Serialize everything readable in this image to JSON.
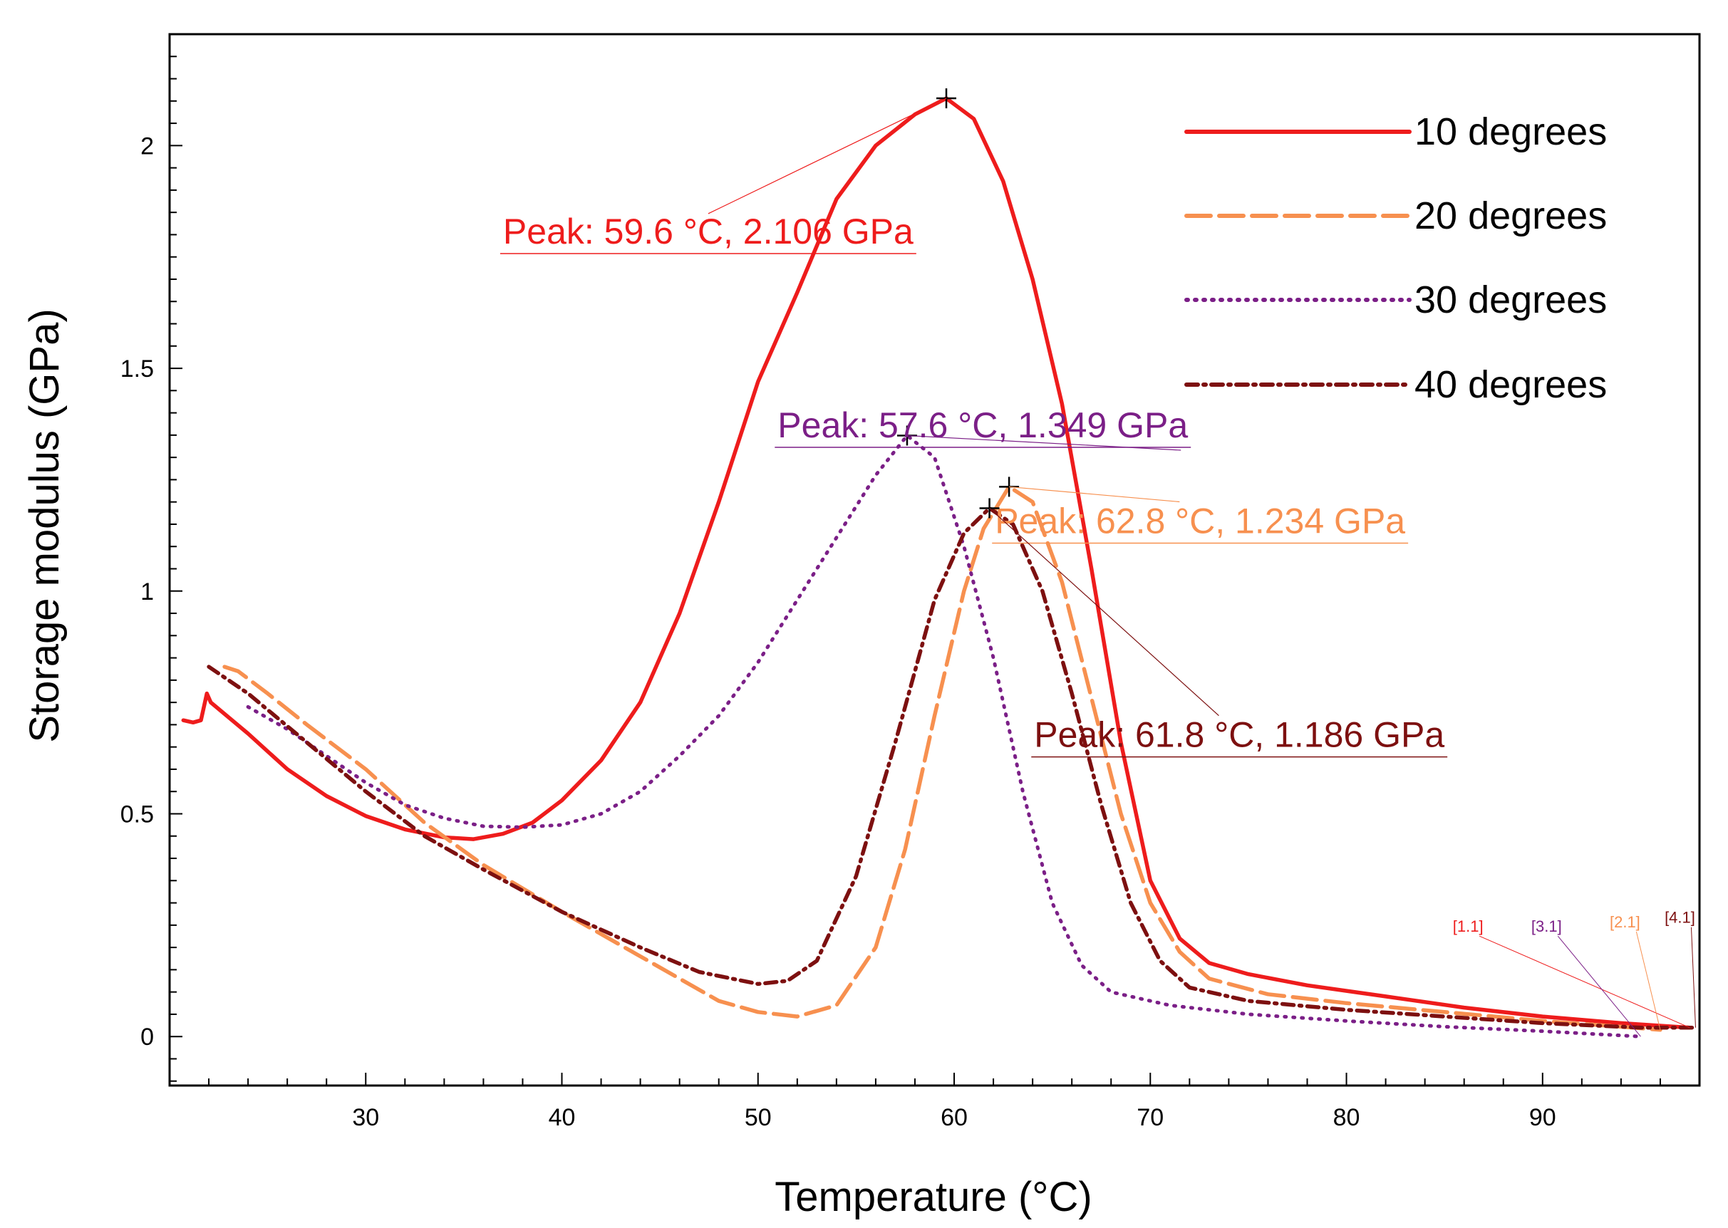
{
  "chart_data": {
    "type": "line",
    "xlabel": "Temperature (°C)",
    "ylabel": "Storage modulus (GPa)",
    "xlim": [
      20,
      98
    ],
    "ylim": [
      -0.11,
      2.25
    ],
    "x_ticks": [
      30,
      40,
      50,
      60,
      70,
      80,
      90
    ],
    "y_ticks": [
      0,
      0.5,
      1,
      1.5,
      2
    ],
    "y_tick_labels": [
      "0",
      "0.5",
      "1",
      "1.5",
      "2"
    ],
    "legend_position": "top-right",
    "legend": [
      "10  degrees",
      "20  degrees",
      "30  degrees",
      "40 degrees"
    ],
    "series": [
      {
        "name": "10  degrees",
        "color": "#ee1c1c",
        "dash": "solid",
        "end_label": "[1.1]",
        "points": [
          [
            20.7,
            0.71
          ],
          [
            21.2,
            0.705
          ],
          [
            21.6,
            0.71
          ],
          [
            21.9,
            0.77
          ],
          [
            22.1,
            0.75
          ],
          [
            24,
            0.68
          ],
          [
            26,
            0.6
          ],
          [
            28,
            0.54
          ],
          [
            30,
            0.495
          ],
          [
            32,
            0.465
          ],
          [
            34,
            0.447
          ],
          [
            35.5,
            0.443
          ],
          [
            37,
            0.455
          ],
          [
            38.5,
            0.48
          ],
          [
            40,
            0.53
          ],
          [
            42,
            0.62
          ],
          [
            44,
            0.75
          ],
          [
            46,
            0.95
          ],
          [
            48,
            1.2
          ],
          [
            50,
            1.47
          ],
          [
            52,
            1.67
          ],
          [
            54,
            1.88
          ],
          [
            56,
            2.0
          ],
          [
            58,
            2.07
          ],
          [
            59.6,
            2.106
          ],
          [
            61,
            2.06
          ],
          [
            62.5,
            1.92
          ],
          [
            64,
            1.7
          ],
          [
            65.5,
            1.42
          ],
          [
            67,
            1.05
          ],
          [
            68.5,
            0.66
          ],
          [
            70,
            0.35
          ],
          [
            71.5,
            0.22
          ],
          [
            73,
            0.165
          ],
          [
            75,
            0.14
          ],
          [
            78,
            0.115
          ],
          [
            82,
            0.09
          ],
          [
            86,
            0.065
          ],
          [
            90,
            0.045
          ],
          [
            94,
            0.03
          ],
          [
            97.5,
            0.02
          ]
        ]
      },
      {
        "name": "20  degrees",
        "color": "#f7904f",
        "dash": "long-dash",
        "end_label": "[2.1]",
        "points": [
          [
            22.8,
            0.83
          ],
          [
            23.5,
            0.82
          ],
          [
            25,
            0.77
          ],
          [
            27,
            0.7
          ],
          [
            30,
            0.6
          ],
          [
            33,
            0.48
          ],
          [
            36,
            0.385
          ],
          [
            40,
            0.28
          ],
          [
            44,
            0.18
          ],
          [
            48,
            0.08
          ],
          [
            50,
            0.055
          ],
          [
            52,
            0.045
          ],
          [
            54,
            0.07
          ],
          [
            56,
            0.2
          ],
          [
            57.5,
            0.42
          ],
          [
            59,
            0.72
          ],
          [
            60.5,
            1.0
          ],
          [
            61.5,
            1.14
          ],
          [
            62.8,
            1.234
          ],
          [
            64,
            1.2
          ],
          [
            65.5,
            1.02
          ],
          [
            67,
            0.76
          ],
          [
            68.5,
            0.5
          ],
          [
            70,
            0.3
          ],
          [
            71.5,
            0.19
          ],
          [
            73,
            0.13
          ],
          [
            76,
            0.095
          ],
          [
            80,
            0.075
          ],
          [
            85,
            0.055
          ],
          [
            90,
            0.035
          ],
          [
            94,
            0.022
          ],
          [
            96,
            0.015
          ]
        ]
      },
      {
        "name": "30  degrees",
        "color": "#7b1f87",
        "dash": "dot",
        "end_label": "[3.1]",
        "points": [
          [
            24,
            0.74
          ],
          [
            26,
            0.69
          ],
          [
            28,
            0.63
          ],
          [
            30,
            0.57
          ],
          [
            32,
            0.52
          ],
          [
            34,
            0.49
          ],
          [
            36,
            0.472
          ],
          [
            38,
            0.47
          ],
          [
            40,
            0.475
          ],
          [
            42,
            0.5
          ],
          [
            44,
            0.55
          ],
          [
            46,
            0.63
          ],
          [
            48,
            0.72
          ],
          [
            50,
            0.84
          ],
          [
            52,
            0.98
          ],
          [
            54,
            1.12
          ],
          [
            56,
            1.26
          ],
          [
            57.6,
            1.349
          ],
          [
            59,
            1.3
          ],
          [
            60.5,
            1.1
          ],
          [
            62,
            0.85
          ],
          [
            63.5,
            0.55
          ],
          [
            65,
            0.3
          ],
          [
            66.5,
            0.16
          ],
          [
            68,
            0.1
          ],
          [
            71,
            0.07
          ],
          [
            75,
            0.05
          ],
          [
            80,
            0.035
          ],
          [
            85,
            0.022
          ],
          [
            90,
            0.012
          ],
          [
            95,
            0.0
          ]
        ]
      },
      {
        "name": "40 degrees",
        "color": "#7d1010",
        "dash": "dash-dot",
        "end_label": "[4.1]",
        "points": [
          [
            22,
            0.83
          ],
          [
            24,
            0.77
          ],
          [
            27,
            0.66
          ],
          [
            30,
            0.55
          ],
          [
            33,
            0.45
          ],
          [
            36,
            0.375
          ],
          [
            40,
            0.28
          ],
          [
            44,
            0.2
          ],
          [
            47,
            0.145
          ],
          [
            50,
            0.118
          ],
          [
            51.5,
            0.125
          ],
          [
            53,
            0.17
          ],
          [
            55,
            0.36
          ],
          [
            57,
            0.66
          ],
          [
            59,
            0.98
          ],
          [
            60.5,
            1.13
          ],
          [
            61.8,
            1.186
          ],
          [
            63,
            1.15
          ],
          [
            64.5,
            1.0
          ],
          [
            66,
            0.77
          ],
          [
            67.5,
            0.52
          ],
          [
            69,
            0.3
          ],
          [
            70.5,
            0.17
          ],
          [
            72,
            0.11
          ],
          [
            75,
            0.08
          ],
          [
            80,
            0.06
          ],
          [
            85,
            0.045
          ],
          [
            90,
            0.03
          ],
          [
            95,
            0.02
          ],
          [
            97.8,
            0.02
          ]
        ]
      }
    ],
    "annotations": [
      {
        "name": "peak-10",
        "text": "Peak: 59.6 °C, 2.106 GPa",
        "x": 59.6,
        "y": 2.106,
        "color": "#ee1c1c",
        "anchor_x": 37,
        "anchor_y": 1.78
      },
      {
        "name": "peak-30",
        "text": "Peak: 57.6 °C, 1.349 GPa",
        "x": 57.6,
        "y": 1.349,
        "color": "#7b1f87",
        "anchor_x": 51,
        "anchor_y": 1.345
      },
      {
        "name": "peak-20",
        "text": "Peak: 62.8 °C, 1.234 GPa",
        "x": 62.8,
        "y": 1.234,
        "color": "#f7904f",
        "anchor_x": 83,
        "anchor_y": 1.13
      },
      {
        "name": "peak-40",
        "text": "Peak: 61.8 °C, 1.186 GPa",
        "x": 61.8,
        "y": 1.186,
        "color": "#7d1010",
        "anchor_x": 85,
        "anchor_y": 0.65
      }
    ]
  }
}
